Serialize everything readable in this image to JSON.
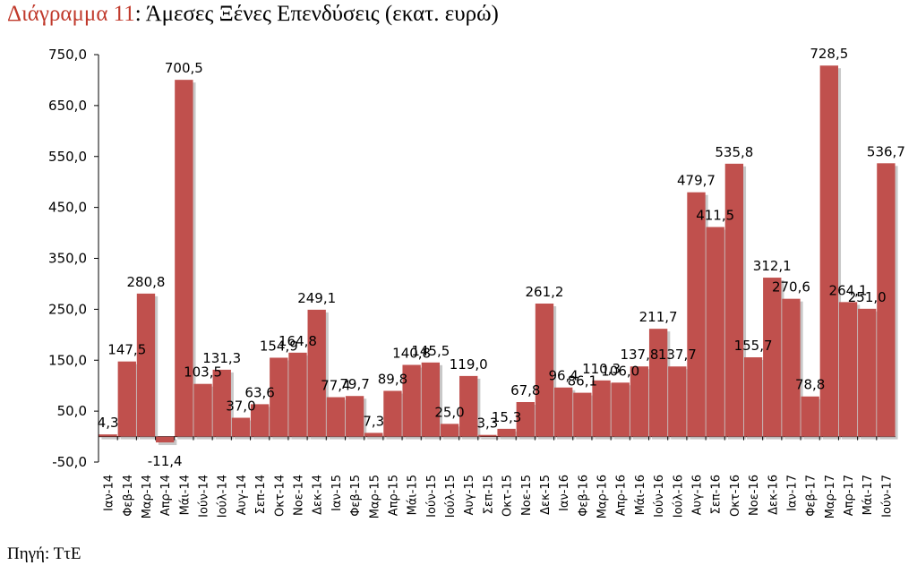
{
  "title": {
    "lead": "Διάγραμμα 11",
    "rest": ": Άμεσες Ξένες Επενδύσεις (εκατ. ευρώ)"
  },
  "source": "Πηγή: ΤτΕ",
  "colors": {
    "bar": "#c0504d",
    "bar_shadow": "#9a9a9a",
    "title_accent": "#c0392b"
  },
  "chart_data": {
    "type": "bar",
    "title": "Διάγραμμα 11: Άμεσες Ξένες Επενδύσεις (εκατ. ευρώ)",
    "xlabel": "",
    "ylabel": "",
    "ylim": [
      -50,
      750
    ],
    "yticks": [
      -50,
      50,
      150,
      250,
      350,
      450,
      550,
      650,
      750
    ],
    "ytick_labels": [
      "-50,0",
      "50,0",
      "150,0",
      "250,0",
      "350,0",
      "450,0",
      "550,0",
      "650,0",
      "750,0"
    ],
    "grid": false,
    "categories": [
      "Ιαν-14",
      "Φεβ-14",
      "Μαρ-14",
      "Απρ-14",
      "Μάι-14",
      "Ιούν-14",
      "Ιούλ-14",
      "Αυγ-14",
      "Σεπ-14",
      "Οκτ-14",
      "Νοε-14",
      "Δεκ-14",
      "Ιαν-15",
      "Φεβ-15",
      "Μαρ-15",
      "Απρ-15",
      "Μάι-15",
      "Ιούν-15",
      "Ιούλ-15",
      "Αυγ-15",
      "Σεπ-15",
      "Οκτ-15",
      "Νοε-15",
      "Δεκ-15",
      "Ιαν-16",
      "Φεβ-16",
      "Μαρ-16",
      "Απρ-16",
      "Μάι-16",
      "Ιούν-16",
      "Ιούλ-16",
      "Αυγ-16",
      "Σεπ-16",
      "Οκτ-16",
      "Νοε-16",
      "Δεκ-16",
      "Ιαν-17",
      "Φεβ-17",
      "Μαρ-17",
      "Απρ-17",
      "Μάι-17",
      "Ιούν-17"
    ],
    "values": [
      4.3,
      147.5,
      280.8,
      -11.4,
      700.5,
      103.5,
      131.3,
      37.0,
      63.6,
      154.9,
      164.8,
      249.1,
      77.4,
      79.7,
      7.3,
      89.8,
      140.8,
      145.5,
      25.0,
      119.0,
      3.3,
      15.3,
      67.8,
      261.2,
      96.4,
      86.1,
      110.3,
      106.0,
      137.8,
      211.7,
      137.7,
      479.7,
      411.5,
      535.8,
      155.7,
      312.1,
      270.6,
      78.8,
      728.5,
      264.1,
      251.0,
      536.7
    ],
    "value_labels": [
      "4,3",
      "147,5",
      "280,8",
      "-11,4",
      "700,5",
      "103,5",
      "131,3",
      "37,0",
      "63,6",
      "154,9",
      "164,8",
      "249,1",
      "77,4",
      "79,7",
      "7,3",
      "89,8",
      "140,8",
      "145,5",
      "25,0",
      "119,0",
      "3,3",
      "15,3",
      "67,8",
      "261,2",
      "96,4",
      "86,1",
      "110,3",
      "106,0",
      "137,8",
      "211,7",
      "137,7",
      "479,7",
      "411,5",
      "535,8",
      "155,7",
      "312,1",
      "270,6",
      "78,8",
      "728,5",
      "264,1",
      "251,0",
      "536,7"
    ]
  }
}
